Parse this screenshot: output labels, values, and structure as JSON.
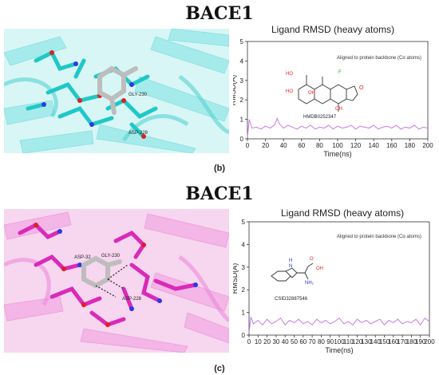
{
  "panel_b": {
    "heading": "BACE1",
    "label": "(b)",
    "residue_labels": [
      "GLY-230",
      "ASP-228"
    ],
    "plot_title": "Ligand RMSD (heavy atoms)",
    "note": "Aligned to protein backbone (Cα atoms)",
    "compound_id": "HMDB0252347",
    "structure_labels": [
      "HO",
      "HO",
      "OH",
      "OH",
      "F",
      "O"
    ],
    "colors": {
      "protein": "#3fd8d8",
      "protein_dark": "#1aa8b0",
      "ligand": "#c8c8c8",
      "trace": "#c77ce0"
    }
  },
  "panel_c": {
    "heading": "BACE1",
    "label": "(c)",
    "residue_labels": [
      "ASP-32",
      "GLY-230",
      "ASP-228"
    ],
    "plot_title": "Ligand RMSD (heavy atoms)",
    "note": "Aligned to protein backbone (Cα atoms)",
    "compound_id": "CSID32887546",
    "structure_labels": [
      "H",
      "N",
      "O",
      "OH",
      "NH₂"
    ],
    "colors": {
      "protein": "#e85fd0",
      "protein_dark": "#c2189e",
      "ligand": "#c8c8c8",
      "trace": "#c77ce0"
    }
  },
  "chart_data": [
    {
      "type": "line",
      "title": "Ligand RMSD (heavy atoms)",
      "xlabel": "Time(ns)",
      "ylabel": "RMSD(Å)",
      "xlim": [
        0,
        200
      ],
      "ylim": [
        0,
        5
      ],
      "xticks": [
        0,
        20,
        40,
        60,
        80,
        100,
        120,
        140,
        160,
        180,
        200
      ],
      "yticks": [
        0,
        1,
        2,
        3,
        4,
        5
      ],
      "grid": false,
      "series": [
        {
          "x": [
            0,
            2,
            5,
            10,
            15,
            20,
            25,
            30,
            33,
            35,
            40,
            45,
            50,
            55,
            60,
            65,
            70,
            75,
            80,
            85,
            90,
            95,
            100,
            105,
            110,
            115,
            120,
            125,
            130,
            135,
            140,
            145,
            150,
            155,
            160,
            165,
            170,
            175,
            180,
            185,
            190,
            195,
            200
          ],
          "y": [
            0.1,
            1.0,
            0.55,
            0.6,
            0.5,
            0.65,
            0.55,
            0.7,
            1.05,
            0.8,
            0.55,
            0.7,
            0.6,
            0.5,
            0.65,
            0.55,
            0.7,
            0.5,
            0.6,
            0.55,
            0.7,
            0.5,
            0.65,
            0.55,
            0.6,
            0.7,
            0.5,
            0.65,
            0.6,
            0.55,
            0.7,
            0.5,
            0.6,
            0.65,
            0.55,
            0.7,
            0.5,
            0.6,
            0.55,
            0.7,
            0.5,
            0.6,
            0.55
          ]
        }
      ]
    },
    {
      "type": "line",
      "title": "Ligand RMSD (heavy atoms)",
      "xlabel": "Time(ns)",
      "ylabel": "RMSD(Å)",
      "xlim": [
        0,
        200
      ],
      "ylim": [
        0,
        5
      ],
      "xticks": [
        0,
        10,
        20,
        30,
        40,
        50,
        60,
        70,
        80,
        90,
        100,
        110,
        120,
        130,
        140,
        150,
        160,
        170,
        180,
        190,
        200
      ],
      "yticks": [
        0,
        1,
        2,
        3,
        4,
        5
      ],
      "grid": false,
      "series": [
        {
          "x": [
            0,
            2,
            5,
            10,
            15,
            20,
            25,
            30,
            35,
            40,
            45,
            50,
            55,
            60,
            65,
            70,
            75,
            80,
            85,
            90,
            95,
            100,
            105,
            110,
            115,
            120,
            125,
            130,
            135,
            140,
            145,
            150,
            155,
            160,
            165,
            170,
            175,
            180,
            185,
            190,
            195,
            200
          ],
          "y": [
            0.1,
            0.8,
            0.5,
            0.65,
            0.45,
            0.7,
            0.5,
            0.6,
            0.75,
            0.45,
            0.65,
            0.55,
            0.7,
            0.5,
            0.6,
            0.45,
            0.7,
            0.55,
            0.65,
            0.5,
            0.6,
            0.75,
            0.5,
            0.6,
            0.45,
            0.7,
            0.55,
            0.65,
            0.5,
            0.6,
            0.7,
            0.45,
            0.65,
            0.55,
            0.7,
            0.5,
            0.6,
            0.55,
            0.7,
            0.45,
            0.75,
            0.6
          ]
        }
      ]
    }
  ]
}
